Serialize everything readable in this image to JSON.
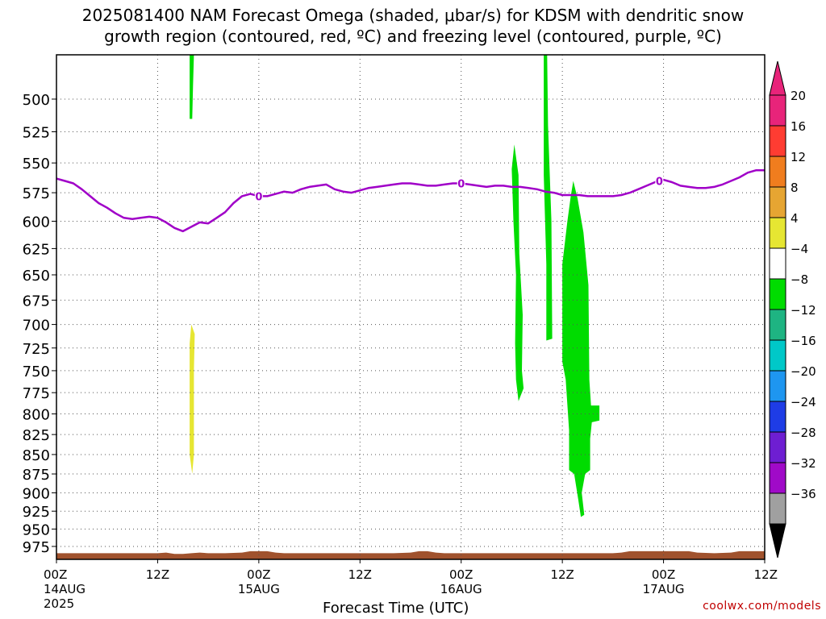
{
  "title": {
    "line1": "2025081400 NAM Forecast Omega (shaded, μbar/s) for KDSM with dendritic snow",
    "line2": "growth region (contoured, red, ºC) and freezing level (contoured, purple, ºC)"
  },
  "credit": "coolwx.com/models",
  "chart_data": {
    "type": "heatmap",
    "xlabel": "Forecast Time (UTC)",
    "ylabel": "",
    "x_unit": "forecast hours from 2025-08-14 00Z",
    "xlim": [
      0,
      84
    ],
    "ylim_hpa": [
      468,
      994
    ],
    "y_scale": "log-pressure (inverted)",
    "grid": true,
    "y_ticks": [
      500,
      525,
      550,
      575,
      600,
      625,
      650,
      675,
      700,
      725,
      750,
      775,
      800,
      825,
      850,
      875,
      900,
      925,
      950,
      975
    ],
    "x_ticks": [
      {
        "hour": 0,
        "top": "00Z",
        "mid": "14AUG",
        "bottom": "2025"
      },
      {
        "hour": 12,
        "top": "12Z",
        "mid": "",
        "bottom": ""
      },
      {
        "hour": 24,
        "top": "00Z",
        "mid": "15AUG",
        "bottom": ""
      },
      {
        "hour": 36,
        "top": "12Z",
        "mid": "",
        "bottom": ""
      },
      {
        "hour": 48,
        "top": "00Z",
        "mid": "16AUG",
        "bottom": ""
      },
      {
        "hour": 60,
        "top": "12Z",
        "mid": "",
        "bottom": ""
      },
      {
        "hour": 72,
        "top": "00Z",
        "mid": "17AUG",
        "bottom": ""
      },
      {
        "hour": 84,
        "top": "12Z",
        "mid": "",
        "bottom": ""
      }
    ],
    "colorbar": {
      "unit": "μbar/s",
      "levels": [
        {
          "label": "20",
          "color": "#e8247a"
        },
        {
          "label": "16",
          "color": "#ff3c32"
        },
        {
          "label": "12",
          "color": "#f07d1e"
        },
        {
          "label": "8",
          "color": "#e6a532"
        },
        {
          "label": "4",
          "color": "#e6e632"
        },
        {
          "label": "−4",
          "color": "#ffffff"
        },
        {
          "label": "−8",
          "color": "#00dc00"
        },
        {
          "label": "−12",
          "color": "#1eb482"
        },
        {
          "label": "−16",
          "color": "#00c8c8"
        },
        {
          "label": "−20",
          "color": "#1e96f0"
        },
        {
          "label": "−24",
          "color": "#1e3ce6"
        },
        {
          "label": "−28",
          "color": "#6e1ed2"
        },
        {
          "label": "−32",
          "color": "#a00ac8"
        },
        {
          "label": "−36",
          "color": "#a0a0a0"
        }
      ],
      "over_color": "#e8247a",
      "under_color": "#000000"
    },
    "omega_regions": [
      {
        "color": "#00dc00",
        "points": [
          [
            15.8,
            468
          ],
          [
            16.3,
            468
          ],
          [
            16.2,
            490
          ],
          [
            16.1,
            515
          ],
          [
            15.8,
            515
          ],
          [
            15.8,
            490
          ]
        ]
      },
      {
        "color": "#e6e632",
        "points": [
          [
            16.0,
            700
          ],
          [
            16.4,
            710
          ],
          [
            16.3,
            750
          ],
          [
            16.3,
            850
          ],
          [
            16.1,
            875
          ],
          [
            15.8,
            850
          ],
          [
            15.8,
            750
          ],
          [
            15.8,
            720
          ]
        ]
      },
      {
        "color": "#00dc00",
        "points": [
          [
            54.3,
            535
          ],
          [
            54.8,
            560
          ],
          [
            54.9,
            630
          ],
          [
            55.3,
            690
          ],
          [
            55.2,
            750
          ],
          [
            55.4,
            770
          ],
          [
            54.8,
            785
          ],
          [
            54.5,
            760
          ],
          [
            54.4,
            720
          ],
          [
            54.5,
            650
          ],
          [
            54.2,
            600
          ],
          [
            54.0,
            555
          ]
        ]
      },
      {
        "color": "#00dc00",
        "points": [
          [
            57.8,
            468
          ],
          [
            58.2,
            468
          ],
          [
            58.3,
            520
          ],
          [
            58.7,
            600
          ],
          [
            58.8,
            715
          ],
          [
            58.1,
            717
          ],
          [
            58.1,
            640
          ],
          [
            57.8,
            560
          ]
        ]
      },
      {
        "color": "#00dc00",
        "points": [
          [
            61.3,
            565
          ],
          [
            61.8,
            580
          ],
          [
            62.5,
            610
          ],
          [
            63.1,
            660
          ],
          [
            63.2,
            760
          ],
          [
            63.4,
            790
          ],
          [
            64.4,
            790
          ],
          [
            64.4,
            808
          ],
          [
            63.5,
            810
          ],
          [
            63.3,
            830
          ],
          [
            63.3,
            870
          ],
          [
            62.7,
            875
          ],
          [
            62.3,
            900
          ],
          [
            62.6,
            930
          ],
          [
            62.2,
            933
          ],
          [
            61.9,
            910
          ],
          [
            61.4,
            875
          ],
          [
            60.8,
            870
          ],
          [
            60.8,
            820
          ],
          [
            60.4,
            760
          ],
          [
            60.0,
            740
          ],
          [
            60.0,
            640
          ],
          [
            60.6,
            600
          ],
          [
            61.0,
            578
          ]
        ]
      }
    ],
    "freezing_level": {
      "label": "0",
      "color": "#a000c8",
      "hours": [
        0,
        1,
        2,
        3,
        4,
        5,
        6,
        7,
        8,
        9,
        10,
        11,
        12,
        13,
        14,
        15,
        16,
        17,
        18,
        19,
        20,
        21,
        22,
        23,
        24,
        25,
        26,
        27,
        28,
        29,
        30,
        31,
        32,
        33,
        34,
        35,
        36,
        37,
        38,
        39,
        40,
        41,
        42,
        43,
        44,
        45,
        46,
        47,
        48,
        49,
        50,
        51,
        52,
        53,
        54,
        55,
        56,
        57,
        58,
        59,
        60,
        61,
        62,
        63,
        64,
        65,
        66,
        67,
        68,
        69,
        70,
        71,
        72,
        73,
        74,
        75,
        76,
        77,
        78,
        79,
        80,
        81,
        82,
        83,
        84
      ],
      "pressure_hpa": [
        563,
        565,
        567,
        572,
        578,
        584,
        588,
        593,
        597,
        598,
        597,
        596,
        597,
        601,
        606,
        609,
        605,
        601,
        602,
        597,
        592,
        584,
        578,
        576,
        578,
        578,
        576,
        574,
        575,
        572,
        570,
        569,
        568,
        572,
        574,
        575,
        573,
        571,
        570,
        569,
        568,
        567,
        567,
        568,
        569,
        569,
        568,
        567,
        567,
        568,
        569,
        570,
        569,
        569,
        570,
        570,
        571,
        572,
        574,
        575,
        577,
        577,
        577,
        578,
        578,
        578,
        578,
        577,
        575,
        572,
        569,
        566,
        564,
        566,
        569,
        570,
        571,
        571,
        570,
        568,
        565,
        562,
        558,
        556,
        556
      ],
      "label_hours": [
        24,
        48,
        71.5
      ]
    },
    "terrain": {
      "color": "#a0522d",
      "hours": [
        0,
        6,
        12,
        13,
        14,
        15,
        16,
        17,
        18,
        20,
        22,
        23,
        24,
        25,
        26,
        27,
        28,
        30,
        36,
        40,
        42,
        43,
        44,
        45,
        46,
        50,
        56,
        60,
        66,
        67,
        68,
        69,
        70,
        72,
        74,
        75,
        76,
        78,
        80,
        81,
        82,
        84
      ],
      "pressure_hpa": [
        985,
        985,
        985,
        984,
        986,
        986,
        985,
        984,
        985,
        985,
        984,
        982,
        982,
        982,
        984,
        985,
        985,
        985,
        985,
        985,
        984,
        982,
        982,
        984,
        985,
        985,
        985,
        985,
        985,
        984,
        982,
        982,
        982,
        982,
        982,
        982,
        984,
        985,
        984,
        982,
        982,
        982
      ]
    }
  }
}
